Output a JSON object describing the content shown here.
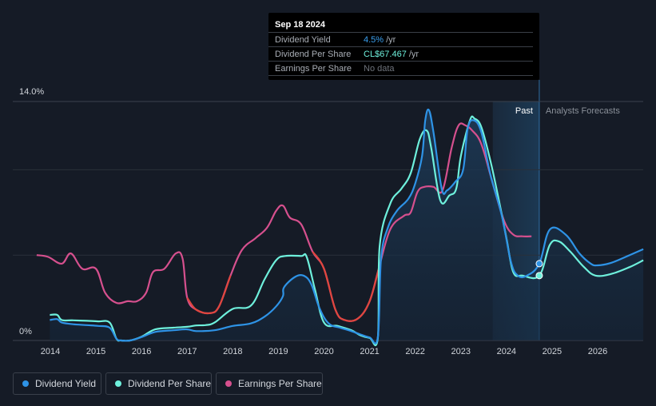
{
  "tooltip": {
    "date": "Sep 18 2024",
    "rows": [
      {
        "label": "Dividend Yield",
        "value": "4.5%",
        "unit": "/yr",
        "color": "#3aa0f0"
      },
      {
        "label": "Dividend Per Share",
        "value": "CL$67.467",
        "unit": "/yr",
        "color": "#6ef0dc"
      },
      {
        "label": "Earnings Per Share",
        "value": "No data",
        "unit": "",
        "color": "#6e737b"
      }
    ]
  },
  "regions": {
    "past_label": "Past",
    "forecast_label": "Analysts Forecasts"
  },
  "legend": [
    {
      "label": "Dividend Yield",
      "color": "#2e93e6"
    },
    {
      "label": "Dividend Per Share",
      "color": "#6ef0dc"
    },
    {
      "label": "Earnings Per Share",
      "color": "#d6508e"
    }
  ],
  "chart_data": {
    "type": "line",
    "y_top_label": "14.0%",
    "y_bottom_label": "0%",
    "ylim": [
      0,
      14
    ],
    "xlim": [
      2013.75,
      2027.0
    ],
    "x_ticks": [
      "2014",
      "2015",
      "2016",
      "2017",
      "2018",
      "2019",
      "2020",
      "2021",
      "2022",
      "2023",
      "2024",
      "2025",
      "2026"
    ],
    "past_region": [
      2023.7,
      2024.72
    ],
    "today": 2024.72,
    "grid": true,
    "legend_position": "bottom-left",
    "series": [
      {
        "name": "Dividend Yield",
        "color": "#2e93e6",
        "points": [
          [
            2013.99,
            1.2
          ],
          [
            2014.15,
            1.25
          ],
          [
            2014.25,
            1.05
          ],
          [
            2014.5,
            0.95
          ],
          [
            2014.8,
            0.9
          ],
          [
            2015.05,
            0.85
          ],
          [
            2015.3,
            0.75
          ],
          [
            2015.45,
            0.1
          ],
          [
            2015.55,
            0
          ],
          [
            2015.75,
            0
          ],
          [
            2016.0,
            0.2
          ],
          [
            2016.3,
            0.5
          ],
          [
            2016.7,
            0.6
          ],
          [
            2017.0,
            0.65
          ],
          [
            2017.2,
            0.55
          ],
          [
            2017.6,
            0.6
          ],
          [
            2018.0,
            0.85
          ],
          [
            2018.4,
            1.0
          ],
          [
            2018.7,
            1.4
          ],
          [
            2018.95,
            2.0
          ],
          [
            2019.1,
            2.6
          ],
          [
            2019.12,
            3.1
          ],
          [
            2019.35,
            3.7
          ],
          [
            2019.55,
            3.8
          ],
          [
            2019.72,
            3.3
          ],
          [
            2019.9,
            1.9
          ],
          [
            2020.1,
            1.0
          ],
          [
            2020.35,
            0.75
          ],
          [
            2020.6,
            0.55
          ],
          [
            2020.8,
            0.35
          ],
          [
            2021.0,
            0.18
          ],
          [
            2021.18,
            0.2
          ],
          [
            2021.25,
            4.8
          ],
          [
            2021.4,
            6.6
          ],
          [
            2021.6,
            7.6
          ],
          [
            2021.85,
            8.3
          ],
          [
            2022.0,
            9.2
          ],
          [
            2022.15,
            10.8
          ],
          [
            2022.22,
            12.9
          ],
          [
            2022.3,
            13.5
          ],
          [
            2022.4,
            12.2
          ],
          [
            2022.58,
            8.9
          ],
          [
            2022.7,
            8.8
          ],
          [
            2022.88,
            9.3
          ],
          [
            2023.05,
            10.0
          ],
          [
            2023.15,
            12.4
          ],
          [
            2023.28,
            12.9
          ],
          [
            2023.45,
            12.2
          ],
          [
            2023.65,
            9.7
          ],
          [
            2023.9,
            7.3
          ],
          [
            2024.1,
            4.6
          ],
          [
            2024.25,
            3.8
          ],
          [
            2024.45,
            3.8
          ],
          [
            2024.72,
            4.5
          ],
          [
            2024.95,
            6.5
          ],
          [
            2025.3,
            6.2
          ],
          [
            2025.6,
            5.1
          ],
          [
            2025.85,
            4.5
          ],
          [
            2026.0,
            4.4
          ],
          [
            2026.3,
            4.55
          ],
          [
            2026.7,
            5.0
          ],
          [
            2027.0,
            5.35
          ]
        ]
      },
      {
        "name": "Dividend Per Share",
        "color": "#6ef0dc",
        "points": [
          [
            2013.99,
            1.5
          ],
          [
            2014.15,
            1.5
          ],
          [
            2014.25,
            1.2
          ],
          [
            2014.5,
            1.18
          ],
          [
            2014.8,
            1.15
          ],
          [
            2015.05,
            1.12
          ],
          [
            2015.3,
            1.05
          ],
          [
            2015.45,
            0.1
          ],
          [
            2015.55,
            0
          ],
          [
            2015.75,
            0
          ],
          [
            2016.0,
            0.22
          ],
          [
            2016.3,
            0.65
          ],
          [
            2016.7,
            0.75
          ],
          [
            2017.0,
            0.8
          ],
          [
            2017.2,
            0.88
          ],
          [
            2017.4,
            0.9
          ],
          [
            2017.6,
            1.05
          ],
          [
            2018.0,
            1.85
          ],
          [
            2018.4,
            2.05
          ],
          [
            2018.7,
            3.6
          ],
          [
            2018.95,
            4.7
          ],
          [
            2019.15,
            4.95
          ],
          [
            2019.5,
            4.95
          ],
          [
            2019.62,
            4.9
          ],
          [
            2019.8,
            3.0
          ],
          [
            2020.0,
            1.05
          ],
          [
            2020.3,
            0.85
          ],
          [
            2020.6,
            0.6
          ],
          [
            2020.8,
            0.3
          ],
          [
            2021.0,
            0.15
          ],
          [
            2021.18,
            0.15
          ],
          [
            2021.22,
            5.5
          ],
          [
            2021.45,
            8.0
          ],
          [
            2021.7,
            8.9
          ],
          [
            2021.9,
            9.8
          ],
          [
            2022.1,
            11.8
          ],
          [
            2022.25,
            12.3
          ],
          [
            2022.35,
            11.3
          ],
          [
            2022.55,
            8.2
          ],
          [
            2022.75,
            8.5
          ],
          [
            2022.9,
            8.9
          ],
          [
            2023.0,
            10.8
          ],
          [
            2023.2,
            12.9
          ],
          [
            2023.3,
            13.0
          ],
          [
            2023.45,
            12.5
          ],
          [
            2023.65,
            10.5
          ],
          [
            2023.85,
            8.0
          ],
          [
            2024.0,
            6.0
          ],
          [
            2024.15,
            4.0
          ],
          [
            2024.35,
            3.8
          ],
          [
            2024.72,
            3.8
          ],
          [
            2024.95,
            5.6
          ],
          [
            2025.15,
            5.8
          ],
          [
            2025.4,
            5.2
          ],
          [
            2025.7,
            4.3
          ],
          [
            2025.95,
            3.8
          ],
          [
            2026.3,
            3.9
          ],
          [
            2026.7,
            4.3
          ],
          [
            2027.0,
            4.7
          ]
        ]
      },
      {
        "name": "Earnings Per Share",
        "color": "#d6508e",
        "points": [
          [
            2013.7,
            5.0
          ],
          [
            2013.95,
            4.9
          ],
          [
            2014.25,
            4.5
          ],
          [
            2014.45,
            5.1
          ],
          [
            2014.7,
            4.2
          ],
          [
            2015.0,
            4.2
          ],
          [
            2015.2,
            2.8
          ],
          [
            2015.45,
            2.2
          ],
          [
            2015.7,
            2.3
          ],
          [
            2015.9,
            2.3
          ],
          [
            2016.1,
            2.8
          ],
          [
            2016.25,
            4.0
          ],
          [
            2016.5,
            4.2
          ],
          [
            2016.75,
            5.1
          ],
          [
            2016.9,
            4.8
          ],
          [
            2017.0,
            2.5
          ],
          [
            2017.2,
            1.8
          ],
          [
            2017.5,
            1.6
          ],
          [
            2017.7,
            2.0
          ],
          [
            2017.95,
            3.8
          ],
          [
            2018.2,
            5.3
          ],
          [
            2018.5,
            6.0
          ],
          [
            2018.75,
            6.6
          ],
          [
            2018.95,
            7.6
          ],
          [
            2019.1,
            7.9
          ],
          [
            2019.25,
            7.2
          ],
          [
            2019.5,
            6.8
          ],
          [
            2019.75,
            5.2
          ],
          [
            2020.0,
            4.2
          ],
          [
            2020.25,
            1.8
          ],
          [
            2020.45,
            1.2
          ],
          [
            2020.75,
            1.3
          ],
          [
            2021.0,
            2.3
          ],
          [
            2021.2,
            4.2
          ],
          [
            2021.45,
            6.5
          ],
          [
            2021.75,
            7.3
          ],
          [
            2021.9,
            7.5
          ],
          [
            2022.05,
            8.7
          ],
          [
            2022.2,
            9.0
          ],
          [
            2022.4,
            9.0
          ],
          [
            2022.6,
            8.8
          ],
          [
            2022.8,
            11.3
          ],
          [
            2022.95,
            12.6
          ],
          [
            2023.1,
            12.6
          ],
          [
            2023.25,
            12.3
          ],
          [
            2023.45,
            11.5
          ],
          [
            2023.7,
            9.2
          ],
          [
            2023.95,
            7.0
          ],
          [
            2024.15,
            6.2
          ],
          [
            2024.35,
            6.1
          ],
          [
            2024.55,
            6.1
          ]
        ]
      }
    ]
  }
}
